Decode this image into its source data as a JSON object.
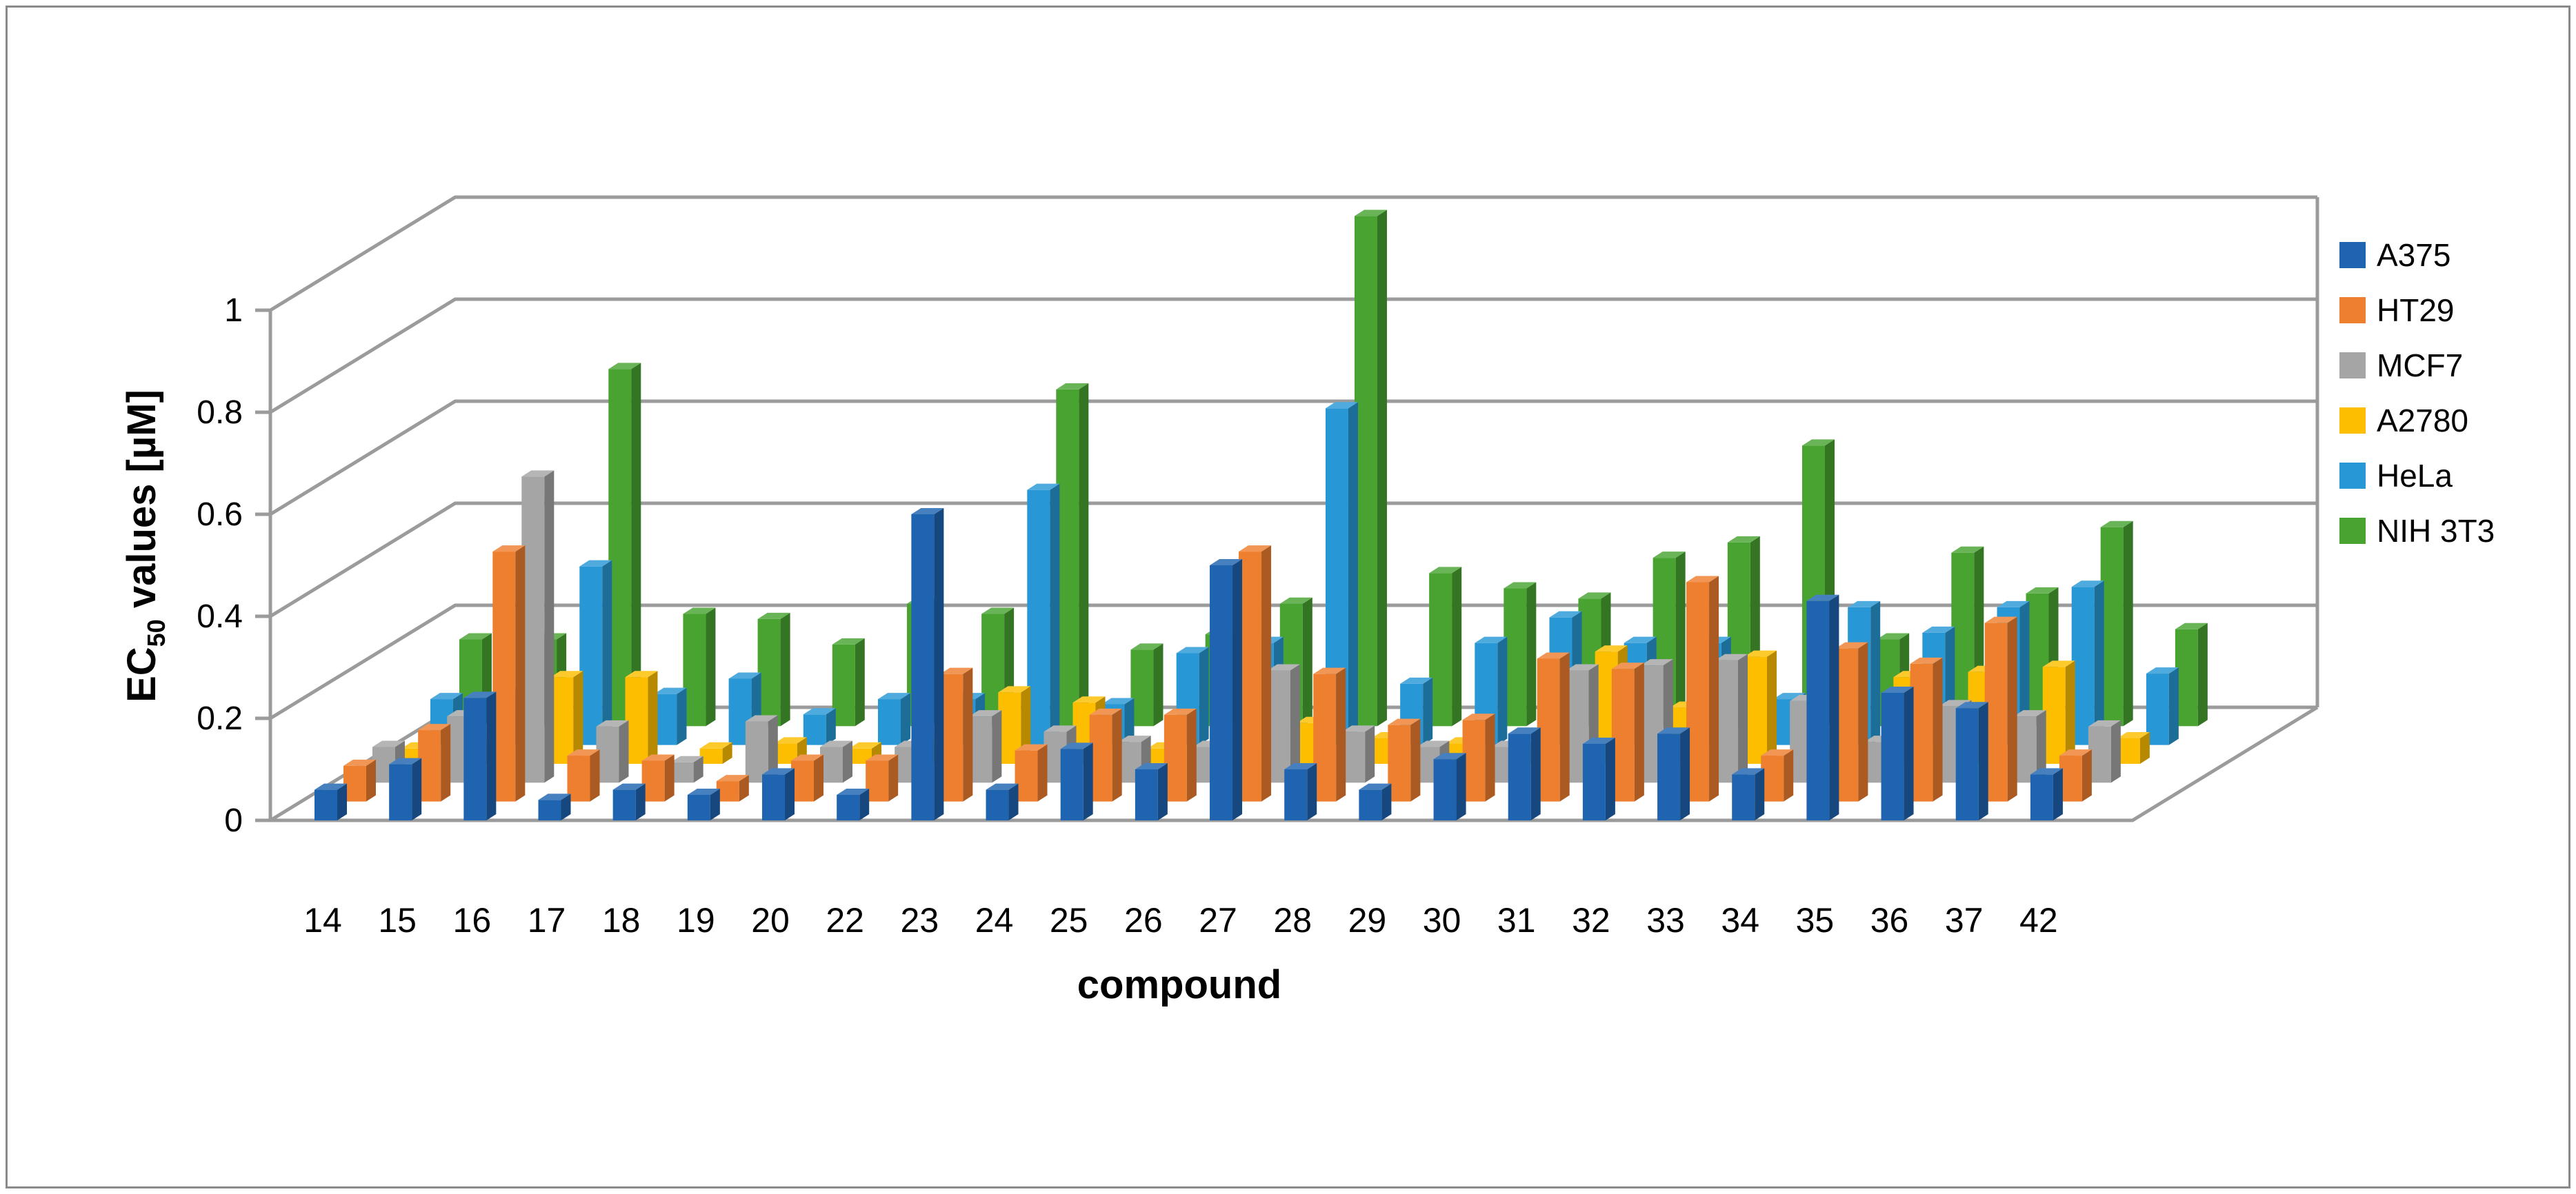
{
  "chart_data": {
    "type": "bar",
    "variant": "3d-clustered-column",
    "title": "",
    "xlabel": "compound",
    "ylabel": "EC₅₀ values [µM]",
    "ylabel_parts": {
      "prefix": "EC",
      "subscript": "50",
      "suffix": " values [µM]"
    },
    "ylim": [
      0,
      1
    ],
    "grid": true,
    "legend_position": "right",
    "axis_ticks": [
      "0",
      "0.2",
      "0.4",
      "0.6",
      "0.8",
      "1"
    ],
    "axis_tick_values": [
      0,
      0.2,
      0.4,
      0.6,
      0.8,
      1
    ],
    "categories": [
      "14",
      "15",
      "16",
      "17",
      "18",
      "19",
      "20",
      "22",
      "23",
      "24",
      "25",
      "26",
      "27",
      "28",
      "29",
      "30",
      "31",
      "32",
      "33",
      "34",
      "35",
      "36",
      "37",
      "42"
    ],
    "series": [
      {
        "name": "A375",
        "color": "#1E64B0",
        "values": [
          0.06,
          0.11,
          0.24,
          0.04,
          0.06,
          0.05,
          0.09,
          0.05,
          0.6,
          0.06,
          0.14,
          0.1,
          0.5,
          0.1,
          0.06,
          0.12,
          0.17,
          0.15,
          0.17,
          0.09,
          0.43,
          0.25,
          0.22,
          0.09
        ]
      },
      {
        "name": "HT29",
        "color": "#EE7F2F",
        "values": [
          0.07,
          0.14,
          0.49,
          0.09,
          0.08,
          0.04,
          0.08,
          0.08,
          0.25,
          0.1,
          0.17,
          0.17,
          0.49,
          0.25,
          0.15,
          0.16,
          0.28,
          0.26,
          0.43,
          0.09,
          0.3,
          0.27,
          0.35,
          0.09
        ]
      },
      {
        "name": "MCF7",
        "color": "#A5A5A5",
        "values": [
          0.07,
          0.13,
          0.6,
          0.11,
          0.04,
          0.12,
          0.07,
          0.07,
          0.13,
          0.1,
          0.08,
          0.07,
          0.22,
          0.1,
          0.07,
          0.07,
          0.22,
          0.23,
          0.24,
          0.16,
          0.08,
          0.15,
          0.13,
          0.11
        ]
      },
      {
        "name": "A2780",
        "color": "#FDBE00",
        "values": [
          0.03,
          0.04,
          0.17,
          0.17,
          0.03,
          0.04,
          0.03,
          0.04,
          0.14,
          0.12,
          0.03,
          0.03,
          0.08,
          0.05,
          0.04,
          0.03,
          0.22,
          0.11,
          0.21,
          0.03,
          0.17,
          0.18,
          0.19,
          0.05
        ]
      },
      {
        "name": "HeLa",
        "color": "#2897D5",
        "values": [
          0.09,
          0.1,
          0.35,
          0.1,
          0.13,
          0.06,
          0.09,
          0.09,
          0.5,
          0.08,
          0.18,
          0.2,
          0.66,
          0.12,
          0.2,
          0.25,
          0.2,
          0.2,
          0.09,
          0.27,
          0.22,
          0.27,
          0.31,
          0.14
        ]
      },
      {
        "name": "NIH 3T3",
        "color": "#48A331",
        "values": [
          0.17,
          0.17,
          0.7,
          0.22,
          0.21,
          0.16,
          0.24,
          0.22,
          0.66,
          0.15,
          0.18,
          0.24,
          1.0,
          0.3,
          0.27,
          0.25,
          0.33,
          0.36,
          0.55,
          0.17,
          0.34,
          0.26,
          0.39,
          0.19
        ]
      }
    ],
    "colors": {
      "gridline": "#9B9B9B",
      "axis": "#9B9B9B",
      "text": "#000000",
      "background": "#FFFFFF",
      "border": "#8A8A8A"
    }
  }
}
